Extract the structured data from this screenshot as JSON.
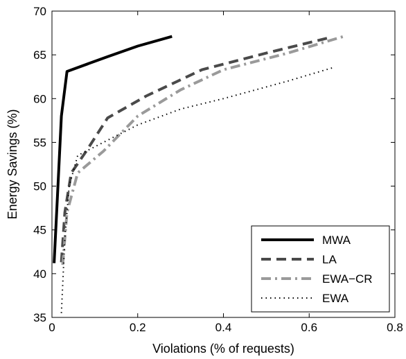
{
  "chart_data": {
    "type": "line",
    "title": "",
    "xlabel": "Violations (% of requests)",
    "ylabel": "Energy Savings (%)",
    "xlim": [
      0,
      0.8
    ],
    "ylim": [
      35,
      70
    ],
    "xticks": [
      "0",
      "0.2",
      "0.4",
      "0.6",
      "0.8"
    ],
    "yticks": [
      "35",
      "40",
      "45",
      "50",
      "55",
      "60",
      "65",
      "70"
    ],
    "grid": false,
    "legend_position": "bottom-right",
    "series": [
      {
        "name": "MWA",
        "color": "#000000",
        "style": "solid",
        "points": [
          [
            0.005,
            41.2
          ],
          [
            0.012,
            48.0
          ],
          [
            0.022,
            58.0
          ],
          [
            0.035,
            63.1
          ],
          [
            0.13,
            64.8
          ],
          [
            0.2,
            66.0
          ],
          [
            0.28,
            67.1
          ]
        ]
      },
      {
        "name": "LA",
        "color": "#4a4a4a",
        "style": "dashed",
        "points": [
          [
            0.022,
            41.3
          ],
          [
            0.03,
            47.0
          ],
          [
            0.045,
            51.5
          ],
          [
            0.08,
            54.0
          ],
          [
            0.13,
            57.8
          ],
          [
            0.22,
            60.3
          ],
          [
            0.35,
            63.3
          ],
          [
            0.5,
            65.2
          ],
          [
            0.65,
            67.0
          ]
        ]
      },
      {
        "name": "EWA−CR",
        "color": "#9a9a9a",
        "style": "dashdot",
        "points": [
          [
            0.025,
            41.0
          ],
          [
            0.035,
            47.0
          ],
          [
            0.06,
            51.5
          ],
          [
            0.12,
            54.0
          ],
          [
            0.2,
            58.0
          ],
          [
            0.3,
            61.0
          ],
          [
            0.4,
            63.3
          ],
          [
            0.55,
            65.2
          ],
          [
            0.68,
            67.1
          ]
        ]
      },
      {
        "name": "EWA",
        "color": "#000000",
        "style": "dotted",
        "points": [
          [
            0.022,
            35.5
          ],
          [
            0.03,
            44.0
          ],
          [
            0.04,
            50.0
          ],
          [
            0.06,
            53.5
          ],
          [
            0.12,
            55.0
          ],
          [
            0.2,
            57.0
          ],
          [
            0.3,
            58.8
          ],
          [
            0.4,
            60.0
          ],
          [
            0.55,
            62.0
          ],
          [
            0.66,
            63.6
          ]
        ]
      }
    ]
  }
}
